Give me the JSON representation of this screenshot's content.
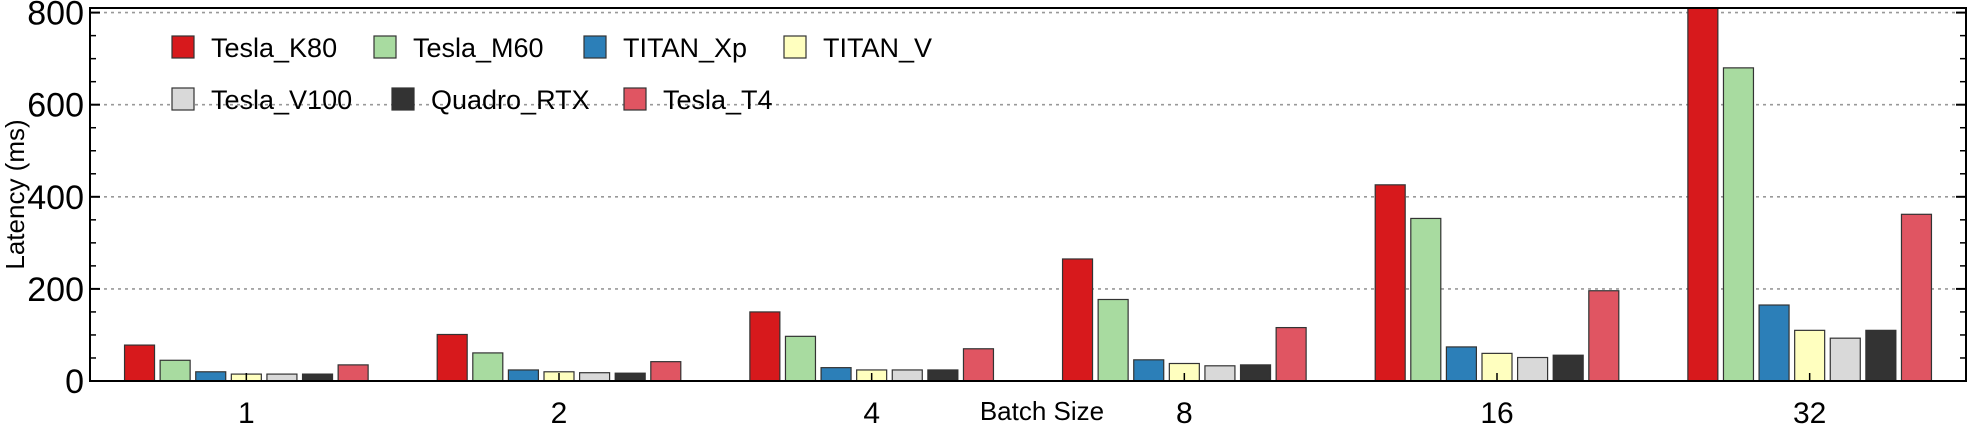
{
  "chart_data": {
    "type": "bar",
    "title": "",
    "xlabel": "Batch Size",
    "ylabel": "Latency (ms)",
    "ylim": [
      0,
      810
    ],
    "yticks": [
      0,
      200,
      400,
      600,
      800
    ],
    "grid": "horizontal-dotted",
    "legend_placement": "top-left",
    "categories": [
      "1",
      "2",
      "4",
      "8",
      "16",
      "32"
    ],
    "series": [
      {
        "name": "Tesla_K80",
        "color": "#d7191c",
        "values": [
          78,
          101,
          150,
          265,
          426,
          810
        ]
      },
      {
        "name": "Tesla_M60",
        "color": "#a8dba0",
        "values": [
          45,
          61,
          97,
          177,
          353,
          680
        ]
      },
      {
        "name": "TITAN_Xp",
        "color": "#2c7fb8",
        "values": [
          20,
          24,
          29,
          46,
          74,
          165
        ]
      },
      {
        "name": "TITAN_V",
        "color": "#ffffbf",
        "values": [
          15,
          20,
          24,
          38,
          60,
          110
        ]
      },
      {
        "name": "Tesla_V100",
        "color": "#d9d9d9",
        "values": [
          15,
          18,
          24,
          33,
          51,
          93
        ]
      },
      {
        "name": "Quadro_RTX",
        "color": "#333333",
        "values": [
          15,
          17,
          24,
          35,
          56,
          110
        ]
      },
      {
        "name": "Tesla_T4",
        "color": "#e05562",
        "values": [
          35,
          42,
          70,
          116,
          196,
          362
        ]
      }
    ]
  }
}
